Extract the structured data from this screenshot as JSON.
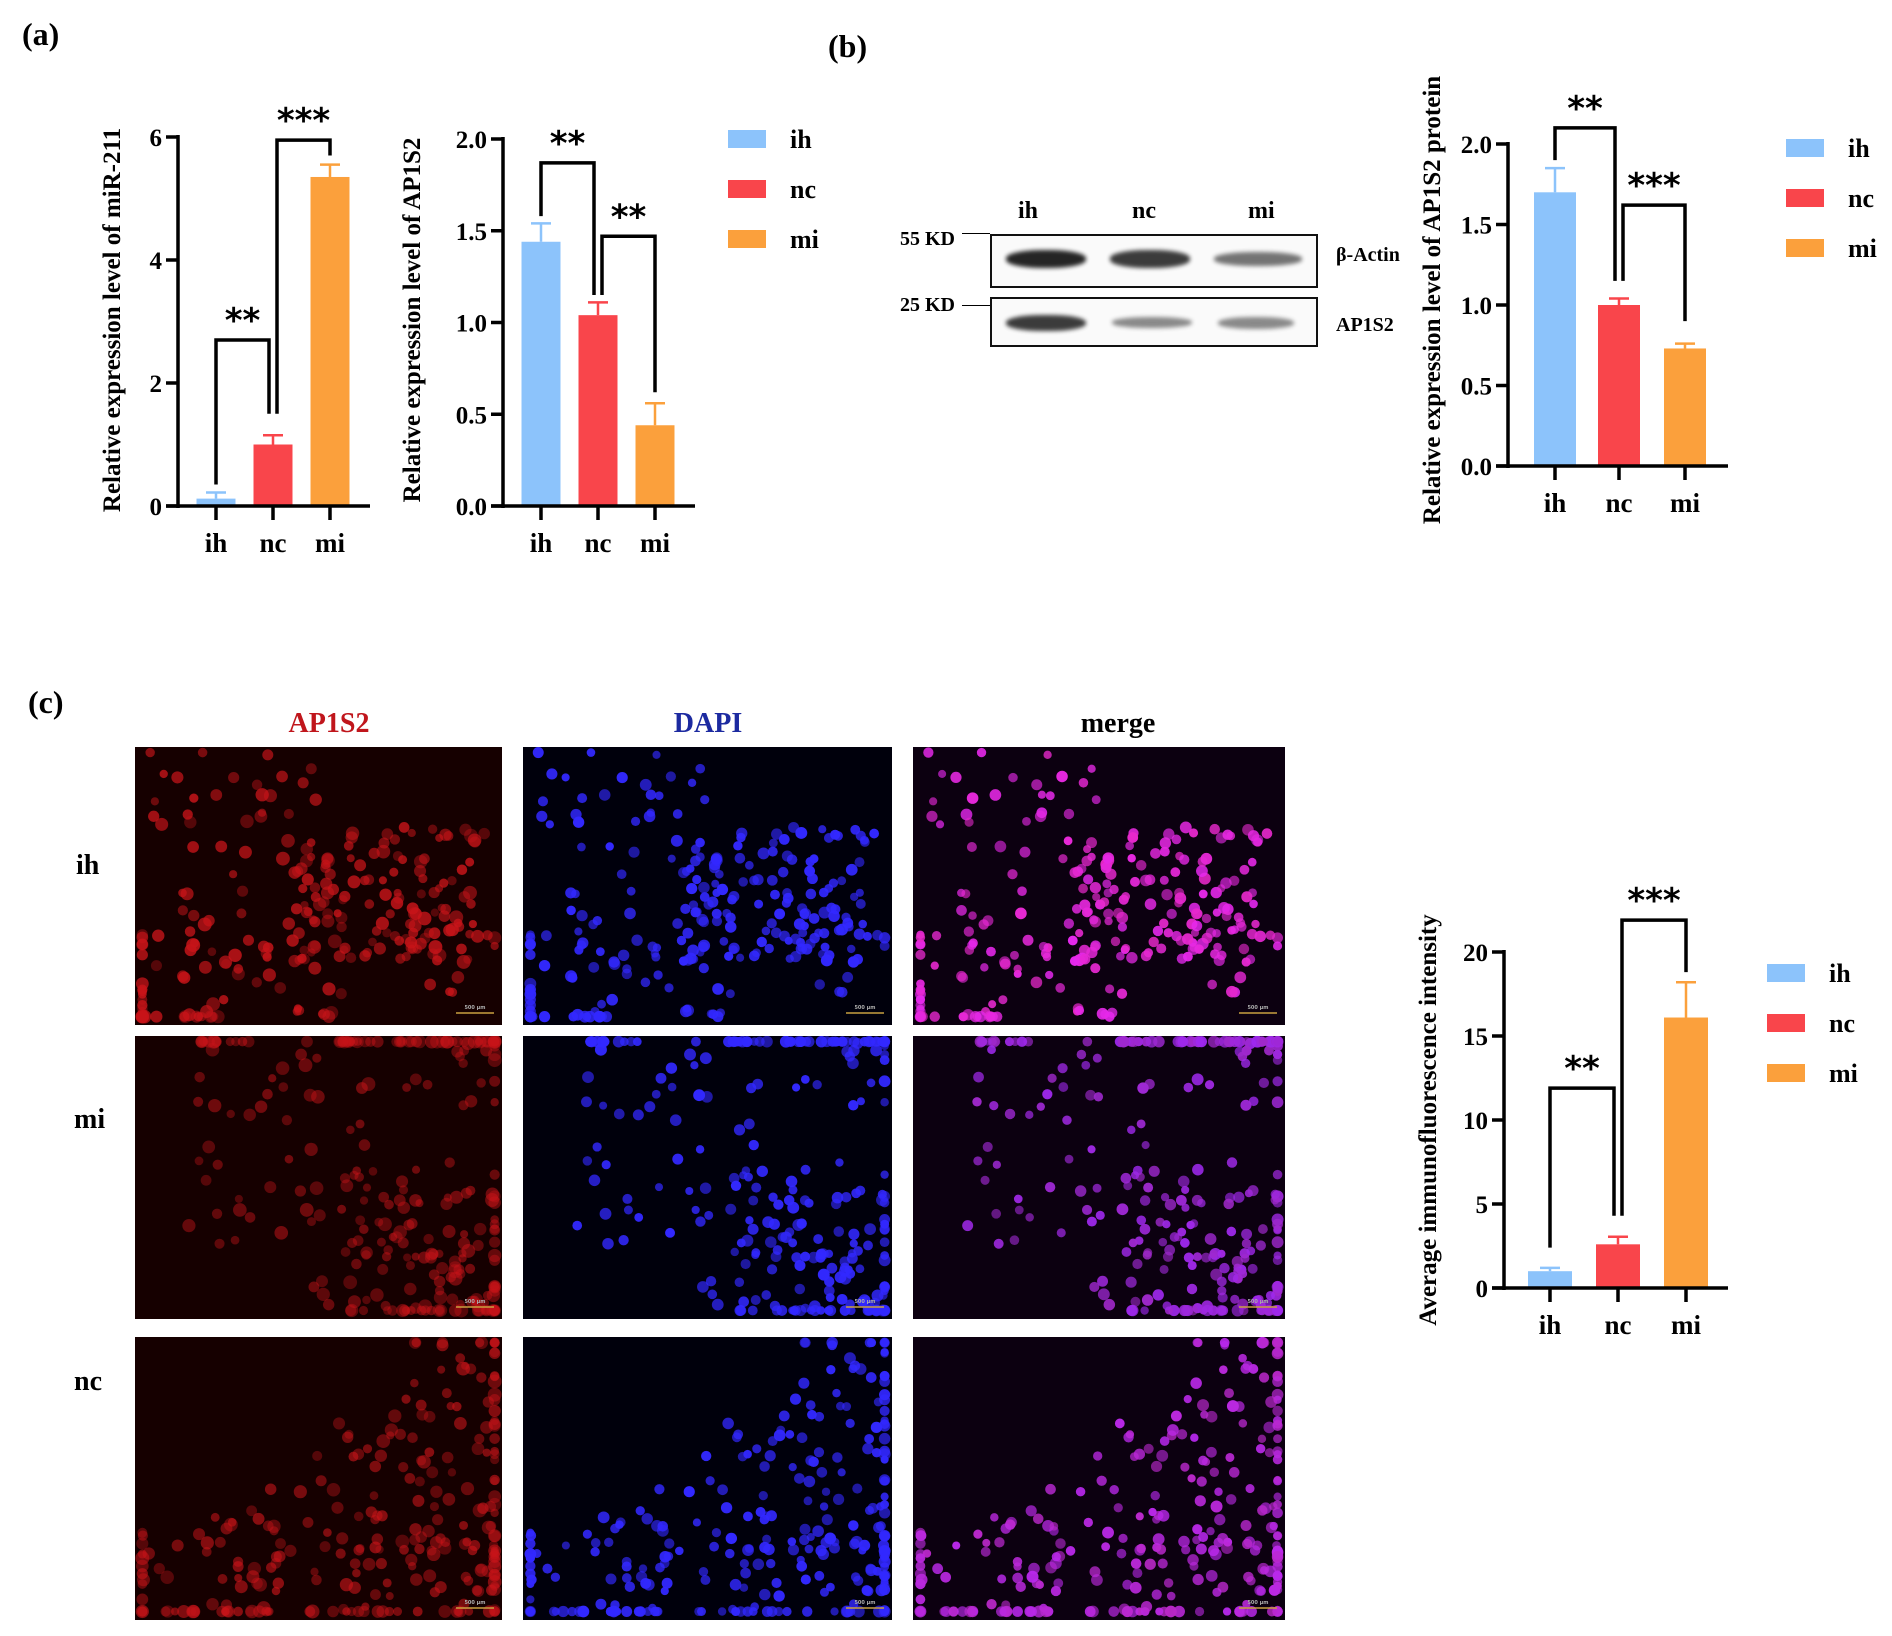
{
  "panels": {
    "a": "(a)",
    "b": "(b)",
    "c": "(c)"
  },
  "colors": {
    "ih": "#8cc3fb",
    "nc": "#f9454b",
    "mi": "#fba03c",
    "axis": "#000000"
  },
  "western_blot": {
    "lanes": [
      "ih",
      "nc",
      "mi"
    ],
    "markers": [
      "55 KD",
      "25 KD"
    ],
    "proteins": [
      "β-Actin",
      "AP1S2"
    ],
    "band_intensity": {
      "beta_actin": [
        0.95,
        0.85,
        0.6
      ],
      "ap1s2": [
        0.85,
        0.5,
        0.5
      ]
    }
  },
  "immunofluorescence": {
    "columns": [
      "AP1S2",
      "DAPI",
      "merge"
    ],
    "column_colors": [
      "#c0161c",
      "#1c2aa0",
      "#000000"
    ],
    "rows": [
      "ih",
      "mi",
      "nc"
    ],
    "scale_bar_label": "500 μm"
  },
  "chart_data": [
    {
      "type": "bar",
      "panel": "a",
      "title": "",
      "xlabel": "",
      "ylabel": "Relative expression level of miR-211",
      "categories": [
        "ih",
        "nc",
        "mi"
      ],
      "values": [
        0.12,
        1.0,
        5.35
      ],
      "errors": [
        0.1,
        0.15,
        0.2
      ],
      "ylim": [
        0,
        6
      ],
      "yticks": [
        0,
        2,
        4,
        6
      ],
      "ytick_labels": [
        "0",
        "2",
        "4",
        "6"
      ],
      "legend": [
        "ih",
        "nc",
        "mi"
      ],
      "legend_position": "right",
      "significance": [
        {
          "from": 0,
          "to": 1,
          "label": "**",
          "y": 2.7,
          "left_end": 0.35,
          "right_end": 1.5
        },
        {
          "from": 1,
          "to": 2,
          "label": "***",
          "y": 5.95,
          "left_end": 1.5,
          "right_end": 5.7
        }
      ]
    },
    {
      "type": "bar",
      "panel": "a",
      "title": "",
      "xlabel": "",
      "ylabel": "Relative expression level of AP1S2",
      "categories": [
        "ih",
        "nc",
        "mi"
      ],
      "values": [
        1.44,
        1.04,
        0.44
      ],
      "errors": [
        0.1,
        0.07,
        0.12
      ],
      "ylim": [
        0,
        2.0
      ],
      "yticks": [
        0,
        0.5,
        1.0,
        1.5,
        2.0
      ],
      "ytick_labels": [
        "0.0",
        "0.5",
        "1.0",
        "1.5",
        "2.0"
      ],
      "legend": [],
      "legend_position": "none",
      "significance": [
        {
          "from": 0,
          "to": 1,
          "label": "**",
          "y": 1.87,
          "left_end": 1.58,
          "right_end": 1.15
        },
        {
          "from": 1,
          "to": 2,
          "label": "**",
          "y": 1.47,
          "left_end": 1.15,
          "right_end": 0.62
        }
      ]
    },
    {
      "type": "bar",
      "panel": "b",
      "title": "",
      "xlabel": "",
      "ylabel": "Relative expression level of AP1S2 protein",
      "categories": [
        "ih",
        "nc",
        "mi"
      ],
      "values": [
        1.7,
        1.0,
        0.73
      ],
      "errors": [
        0.15,
        0.04,
        0.03
      ],
      "ylim": [
        0,
        2.0
      ],
      "yticks": [
        0,
        0.5,
        1.0,
        1.5,
        2.0
      ],
      "ytick_labels": [
        "0.0",
        "0.5",
        "1.0",
        "1.5",
        "2.0"
      ],
      "legend": [
        "ih",
        "nc",
        "mi"
      ],
      "legend_position": "right",
      "significance": [
        {
          "from": 0,
          "to": 1,
          "label": "**",
          "y": 2.1,
          "left_end": 1.9,
          "right_end": 1.15
        },
        {
          "from": 1,
          "to": 2,
          "label": "***",
          "y": 1.62,
          "left_end": 1.15,
          "right_end": 0.9
        }
      ]
    },
    {
      "type": "bar",
      "panel": "c",
      "title": "",
      "xlabel": "",
      "ylabel": "Average immunofluorescence intensity",
      "categories": [
        "ih",
        "nc",
        "mi"
      ],
      "values": [
        1.0,
        2.6,
        16.1
      ],
      "errors": [
        0.2,
        0.45,
        2.1
      ],
      "ylim": [
        0,
        20
      ],
      "yticks": [
        0,
        5,
        10,
        15,
        20
      ],
      "ytick_labels": [
        "0",
        "5",
        "10",
        "15",
        "20"
      ],
      "legend": [
        "ih",
        "nc",
        "mi"
      ],
      "legend_position": "right",
      "significance": [
        {
          "from": 0,
          "to": 1,
          "label": "**",
          "y": 11.9,
          "left_end": 2.4,
          "right_end": 4.3
        },
        {
          "from": 1,
          "to": 2,
          "label": "***",
          "y": 21.9,
          "left_end": 4.3,
          "right_end": 18.8
        }
      ]
    }
  ]
}
